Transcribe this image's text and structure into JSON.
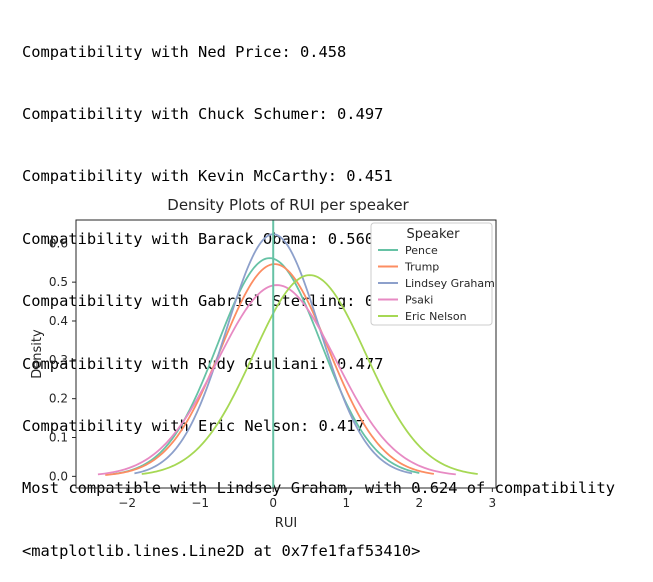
{
  "output_lines": [
    "Compatibility with Ned Price: 0.458",
    "Compatibility with Chuck Schumer: 0.497",
    "Compatibility with Kevin McCarthy: 0.451",
    "Compatibility with Barack Obama: 0.560",
    "Compatibility with Gabriel Sterling: 0.532",
    "Compatibility with Rudy Giuliani: 0.477",
    "Compatibility with Eric Nelson: 0.417",
    "Most compatible with Lindsey Graham, with 0.624 of compatibility",
    "<matplotlib.lines.Line2D at 0x7fe1faf53410>"
  ],
  "chart_data": {
    "type": "line",
    "title": "Density Plots of RUI per speaker",
    "xlabel": "RUI",
    "ylabel": "Density",
    "xlim": [
      -2.7,
      3.05
    ],
    "ylim": [
      -0.03,
      0.66
    ],
    "x_ticks": [
      -2,
      -1,
      0,
      1,
      2,
      3
    ],
    "x_tick_labels": [
      "−2",
      "−1",
      "0",
      "1",
      "2",
      "3"
    ],
    "y_ticks": [
      0.0,
      0.1,
      0.2,
      0.3,
      0.4,
      0.5,
      0.6
    ],
    "y_tick_labels": [
      "0.0",
      "0.1",
      "0.2",
      "0.3",
      "0.4",
      "0.5",
      "0.6"
    ],
    "grid": false,
    "legend_title": "Speaker",
    "legend_position": "top-right",
    "vertical_line": {
      "x": 0,
      "color": "#66c2a5"
    },
    "series": [
      {
        "name": "Pence",
        "color": "#66c2a5",
        "mean": -0.05,
        "sd": 0.71,
        "x_range": [
          -2.2,
          2.0
        ]
      },
      {
        "name": "Trump",
        "color": "#fc8d62",
        "mean": 0.02,
        "sd": 0.73,
        "x_range": [
          -2.3,
          2.2
        ]
      },
      {
        "name": "Lindsey Graham",
        "color": "#8da0cb",
        "mean": 0.0,
        "sd": 0.64,
        "x_range": [
          -1.9,
          1.9
        ]
      },
      {
        "name": "Psaki",
        "color": "#e78ac3",
        "mean": 0.05,
        "sd": 0.81,
        "x_range": [
          -2.4,
          2.5
        ]
      },
      {
        "name": "Eric Nelson",
        "color": "#a6d854",
        "mean": 0.5,
        "sd": 0.77,
        "x_range": [
          -1.8,
          2.8
        ]
      }
    ]
  }
}
